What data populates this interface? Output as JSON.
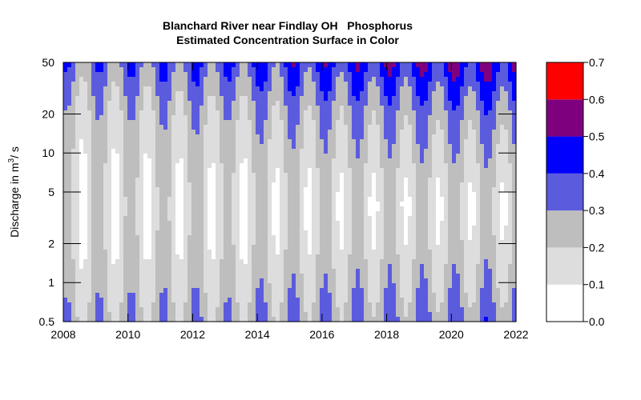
{
  "chart_data": {
    "type": "heatmap",
    "title": "Blanchard River near Findlay OH   Phosphorus",
    "subtitle": "Estimated Concentration Surface in Color",
    "ylabel": {
      "prefix": "Discharge in m",
      "sup": "3",
      "suffix": "/ s"
    },
    "xlim": [
      2008,
      2022
    ],
    "ylim": [
      0.5,
      50
    ],
    "y_scale": "log",
    "x_ticks": [
      "2008",
      "2010",
      "2012",
      "2014",
      "2016",
      "2018",
      "2020",
      "2022"
    ],
    "y_ticks": [
      "0.5",
      "1",
      "2",
      "5",
      "10",
      "20",
      "50"
    ],
    "legend": {
      "placement": "right",
      "ticks": [
        "0.0",
        "0.1",
        "0.2",
        "0.3",
        "0.4",
        "0.5",
        "0.6",
        "0.7"
      ],
      "bins": [
        {
          "range": [
            0.0,
            0.1
          ],
          "color": "#ffffff"
        },
        {
          "range": [
            0.1,
            0.2
          ],
          "color": "#dddddd"
        },
        {
          "range": [
            0.2,
            0.3
          ],
          "color": "#bebebe"
        },
        {
          "range": [
            0.3,
            0.4
          ],
          "color": "#5b5bde"
        },
        {
          "range": [
            0.4,
            0.5
          ],
          "color": "#0000ff"
        },
        {
          "range": [
            0.5,
            0.6
          ],
          "color": "#7f007f"
        },
        {
          "range": [
            0.6,
            0.7
          ],
          "color": "#ff0000"
        }
      ]
    }
  }
}
